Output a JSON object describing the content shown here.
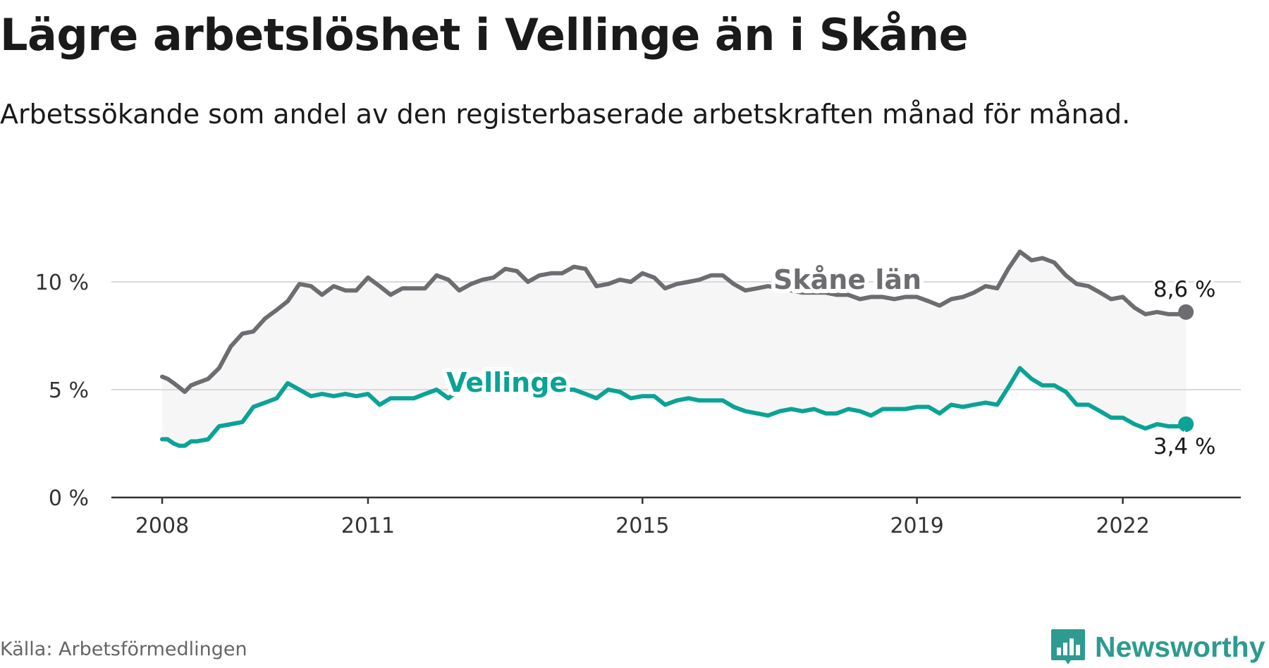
{
  "header": {
    "title": "Lägre arbetslöshet i Vellinge än i Skåne",
    "subtitle": "Arbetssökande som andel av den registerbaserade arbetskraften månad för månad."
  },
  "footer": {
    "source": "Källa: Arbetsförmedlingen",
    "brand": "Newsworthy"
  },
  "colors": {
    "skane": "#6d6d71",
    "vellinge": "#0aa395",
    "band": "#f6f6f6",
    "grid": "#d9d9d9",
    "axis": "#333333",
    "brand": "#2d9b8f"
  },
  "chart_data": {
    "type": "line",
    "title": "Lägre arbetslöshet i Vellinge än i Skåne",
    "subtitle": "Arbetssökande som andel av den registerbaserade arbetskraften månad för månad.",
    "xlabel": "",
    "ylabel": "",
    "ylim": [
      0,
      10
    ],
    "y_ticks": [
      0,
      5,
      10
    ],
    "y_tick_labels": [
      "0 %",
      "5 %",
      "10 %"
    ],
    "x_ticks": [
      2008,
      2011,
      2015,
      2019,
      2022
    ],
    "x_tick_labels": [
      "2008",
      "2011",
      "2015",
      "2019",
      "2022"
    ],
    "x_range": [
      2008.0,
      2023.0
    ],
    "grid": true,
    "shaded_band_between_series": true,
    "series": [
      {
        "name": "Skåne län",
        "key": "skane",
        "label": "Skåne län",
        "end_label": "8,6 %",
        "x": [
          2008.0,
          2008.08,
          2008.17,
          2008.25,
          2008.33,
          2008.42,
          2008.5,
          2008.67,
          2008.83,
          2009.0,
          2009.17,
          2009.33,
          2009.5,
          2009.67,
          2009.83,
          2010.0,
          2010.17,
          2010.33,
          2010.5,
          2010.67,
          2010.83,
          2011.0,
          2011.17,
          2011.33,
          2011.5,
          2011.67,
          2011.83,
          2012.0,
          2012.17,
          2012.33,
          2012.5,
          2012.67,
          2012.83,
          2013.0,
          2013.17,
          2013.33,
          2013.5,
          2013.67,
          2013.83,
          2014.0,
          2014.17,
          2014.33,
          2014.5,
          2014.67,
          2014.83,
          2015.0,
          2015.17,
          2015.33,
          2015.5,
          2015.67,
          2015.83,
          2016.0,
          2016.17,
          2016.33,
          2016.5,
          2016.67,
          2016.83,
          2017.0,
          2017.17,
          2017.33,
          2017.5,
          2017.67,
          2017.83,
          2018.0,
          2018.17,
          2018.33,
          2018.5,
          2018.67,
          2018.83,
          2019.0,
          2019.17,
          2019.33,
          2019.5,
          2019.67,
          2019.83,
          2020.0,
          2020.17,
          2020.33,
          2020.5,
          2020.67,
          2020.83,
          2021.0,
          2021.17,
          2021.33,
          2021.5,
          2021.67,
          2021.83,
          2022.0,
          2022.17,
          2022.33,
          2022.5,
          2022.67,
          2022.83,
          2022.92
        ],
        "values": [
          5.6,
          5.5,
          5.3,
          5.1,
          4.9,
          5.2,
          5.3,
          5.5,
          6.0,
          7.0,
          7.6,
          7.7,
          8.3,
          8.7,
          9.1,
          9.9,
          9.8,
          9.4,
          9.8,
          9.6,
          9.6,
          10.2,
          9.8,
          9.4,
          9.7,
          9.7,
          9.7,
          10.3,
          10.1,
          9.6,
          9.9,
          10.1,
          10.2,
          10.6,
          10.5,
          10.0,
          10.3,
          10.4,
          10.4,
          10.7,
          10.6,
          9.8,
          9.9,
          10.1,
          10.0,
          10.4,
          10.2,
          9.7,
          9.9,
          10.0,
          10.1,
          10.3,
          10.3,
          9.9,
          9.6,
          9.7,
          9.8,
          9.7,
          9.6,
          9.5,
          9.5,
          9.5,
          9.4,
          9.4,
          9.2,
          9.3,
          9.3,
          9.2,
          9.3,
          9.3,
          9.1,
          8.9,
          9.2,
          9.3,
          9.5,
          9.8,
          9.7,
          10.6,
          11.4,
          11.0,
          11.1,
          10.9,
          10.3,
          9.9,
          9.8,
          9.5,
          9.2,
          9.3,
          8.8,
          8.5,
          8.6,
          8.5,
          8.5,
          8.6
        ]
      },
      {
        "name": "Vellinge",
        "key": "vellinge",
        "label": "Vellinge",
        "end_label": "3,4 %",
        "x": [
          2008.0,
          2008.08,
          2008.17,
          2008.25,
          2008.33,
          2008.42,
          2008.5,
          2008.67,
          2008.83,
          2009.0,
          2009.17,
          2009.33,
          2009.5,
          2009.67,
          2009.83,
          2010.0,
          2010.17,
          2010.33,
          2010.5,
          2010.67,
          2010.83,
          2011.0,
          2011.17,
          2011.33,
          2011.5,
          2011.67,
          2011.83,
          2012.0,
          2012.17,
          2012.33,
          2012.5,
          2012.67,
          2012.83,
          2013.0,
          2013.17,
          2013.33,
          2013.5,
          2013.67,
          2013.83,
          2014.0,
          2014.17,
          2014.33,
          2014.5,
          2014.67,
          2014.83,
          2015.0,
          2015.17,
          2015.33,
          2015.5,
          2015.67,
          2015.83,
          2016.0,
          2016.17,
          2016.33,
          2016.5,
          2016.67,
          2016.83,
          2017.0,
          2017.17,
          2017.33,
          2017.5,
          2017.67,
          2017.83,
          2018.0,
          2018.17,
          2018.33,
          2018.5,
          2018.67,
          2018.83,
          2019.0,
          2019.17,
          2019.33,
          2019.5,
          2019.67,
          2019.83,
          2020.0,
          2020.17,
          2020.33,
          2020.5,
          2020.67,
          2020.83,
          2021.0,
          2021.17,
          2021.33,
          2021.5,
          2021.67,
          2021.83,
          2022.0,
          2022.17,
          2022.33,
          2022.5,
          2022.67,
          2022.83,
          2022.92
        ],
        "values": [
          2.7,
          2.7,
          2.5,
          2.4,
          2.4,
          2.6,
          2.6,
          2.7,
          3.3,
          3.4,
          3.5,
          4.2,
          4.4,
          4.6,
          5.3,
          5.0,
          4.7,
          4.8,
          4.7,
          4.8,
          4.7,
          4.8,
          4.3,
          4.6,
          4.6,
          4.6,
          4.8,
          5.0,
          4.6,
          5.0,
          5.1,
          5.2,
          5.1,
          5.0,
          5.0,
          4.8,
          5.0,
          5.1,
          5.0,
          5.0,
          4.8,
          4.6,
          5.0,
          4.9,
          4.6,
          4.7,
          4.7,
          4.3,
          4.5,
          4.6,
          4.5,
          4.5,
          4.5,
          4.2,
          4.0,
          3.9,
          3.8,
          4.0,
          4.1,
          4.0,
          4.1,
          3.9,
          3.9,
          4.1,
          4.0,
          3.8,
          4.1,
          4.1,
          4.1,
          4.2,
          4.2,
          3.9,
          4.3,
          4.2,
          4.3,
          4.4,
          4.3,
          5.1,
          6.0,
          5.5,
          5.2,
          5.2,
          4.9,
          4.3,
          4.3,
          4.0,
          3.7,
          3.7,
          3.4,
          3.2,
          3.4,
          3.3,
          3.3,
          3.4
        ]
      }
    ]
  }
}
